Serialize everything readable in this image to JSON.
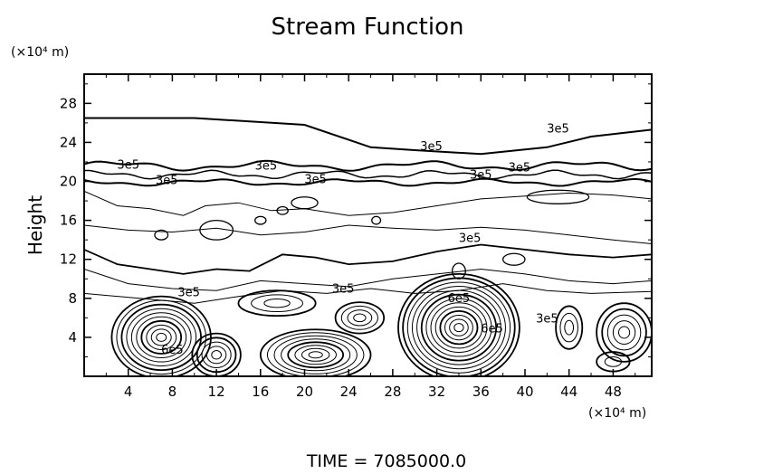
{
  "chart_data": {
    "type": "contour",
    "title": "Stream Function",
    "ylabel": "Height",
    "x_unit_label": "(×10⁴ m)",
    "y_unit_label": "(×10⁴ m)",
    "x_ticks": [
      4,
      8,
      12,
      16,
      20,
      24,
      28,
      32,
      36,
      40,
      44,
      48
    ],
    "y_ticks": [
      4,
      8,
      12,
      16,
      20,
      24,
      28
    ],
    "xlim": [
      0,
      51.5
    ],
    "ylim": [
      0,
      31
    ],
    "grid": false,
    "contour_labels": [
      "3e5",
      "3e5",
      "3e5",
      "3e5",
      "3e5",
      "3e5",
      "3e5",
      "3e5",
      "3e5",
      "3e5",
      "3e5",
      "3e5",
      "6e5",
      "6e5",
      "6e5"
    ],
    "cells": [
      {
        "x": 7,
        "y": 4,
        "rx": 4.5,
        "ry": 4.2,
        "rings": 10
      },
      {
        "x": 12,
        "y": 2.2,
        "rx": 2.2,
        "ry": 2.2,
        "rings": 5
      },
      {
        "x": 21,
        "y": 2.2,
        "rx": 5,
        "ry": 2.6,
        "rings": 8
      },
      {
        "x": 25,
        "y": 6,
        "rx": 2.2,
        "ry": 1.6,
        "rings": 4
      },
      {
        "x": 17.5,
        "y": 7.5,
        "rx": 3.5,
        "ry": 1.3,
        "rings": 3
      },
      {
        "x": 34,
        "y": 5,
        "rx": 5.5,
        "ry": 5.5,
        "rings": 13
      },
      {
        "x": 44,
        "y": 5,
        "rx": 1.2,
        "ry": 2.2,
        "rings": 3
      },
      {
        "x": 49,
        "y": 4.5,
        "rx": 2.5,
        "ry": 3,
        "rings": 5
      },
      {
        "x": 48,
        "y": 1.5,
        "rx": 1.5,
        "ry": 1,
        "rings": 2
      }
    ]
  },
  "footer": {
    "time_label": "TIME  =  7085000.0"
  }
}
